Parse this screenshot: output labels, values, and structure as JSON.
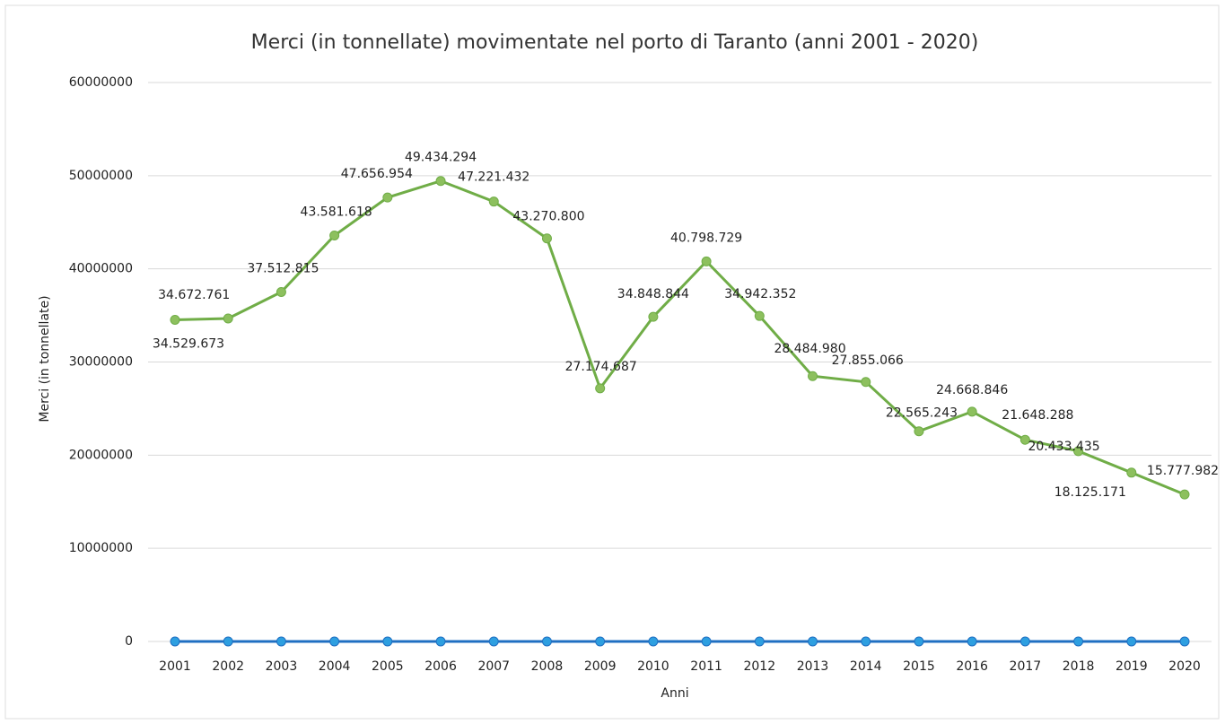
{
  "chart_data": {
    "type": "line",
    "title": "Merci (in tonnellate) movimentate nel porto di Taranto (anni 2001 - 2020)",
    "x_label": "Anni",
    "y_label": "Merci (in tonnellate)",
    "categories": [
      "2001",
      "2002",
      "2003",
      "2004",
      "2005",
      "2006",
      "2007",
      "2008",
      "2009",
      "2010",
      "2011",
      "2012",
      "2013",
      "2014",
      "2015",
      "2016",
      "2017",
      "2018",
      "2019",
      "2020"
    ],
    "series": [
      {
        "color": "#70ad47",
        "values": [
          34529673,
          34672761,
          37512815,
          43581618,
          47656954,
          49434294,
          47221432,
          43270800,
          27174687,
          34848844,
          40798729,
          34942352,
          28484980,
          27855066,
          22565243,
          24668846,
          21648288,
          20433435,
          18125171,
          15777982
        ],
        "value_labels": [
          "34.529.673",
          "34.672.761",
          "37.512.815",
          "43.581.618",
          "47.656.954",
          "49.434.294",
          "47.221.432",
          "43.270.800",
          "27.174.687",
          "34.848.844",
          "40.798.729",
          "34.942.352",
          "28.484.980",
          "27.855.066",
          "22.565.243",
          "24.668.846",
          "21.648.288",
          "20.433.435",
          "18.125.171",
          "15.777.982"
        ]
      },
      {
        "color": "#1f6fc2",
        "values": [
          0,
          0,
          0,
          0,
          0,
          0,
          0,
          0,
          0,
          0,
          0,
          0,
          0,
          0,
          0,
          0,
          0,
          0,
          0,
          0
        ]
      }
    ],
    "ylim": [
      0,
      60000000
    ],
    "yticks": [
      0,
      10000000,
      20000000,
      30000000,
      40000000,
      50000000,
      60000000
    ],
    "grid": true
  }
}
